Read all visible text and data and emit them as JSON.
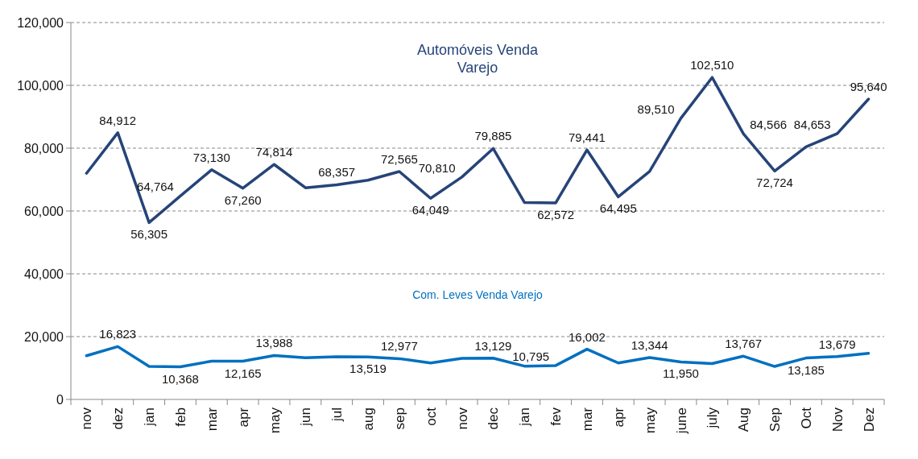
{
  "chart_data": {
    "type": "line",
    "categories": [
      "nov",
      "dez",
      "jan",
      "feb",
      "mar",
      "apr",
      "may",
      "jun",
      "jul",
      "aug",
      "sep",
      "oct",
      "nov",
      "dec",
      "jan",
      "fev",
      "mar",
      "apr",
      "may",
      "june",
      "july",
      "Aug",
      "Sep",
      "Oct",
      "Nov",
      "Dez"
    ],
    "series": [
      {
        "name": "Automóveis Venda Varejo",
        "color": "#264478",
        "values": [
          72000,
          84912,
          56305,
          64764,
          73130,
          67260,
          74814,
          67400,
          68357,
          69800,
          72565,
          64049,
          70810,
          79885,
          62700,
          62572,
          79441,
          64495,
          72600,
          89510,
          102510,
          84566,
          72724,
          80400,
          84653,
          95640
        ],
        "value_labels": [
          null,
          "84,912",
          "56,305",
          "64,764",
          "73,130",
          "67,260",
          "74,814",
          null,
          "68,357",
          null,
          "72,565",
          "64,049",
          "70,810",
          "79,885",
          null,
          "62,572",
          "79,441",
          "64,495",
          null,
          "89,510",
          "102,510",
          "84,566",
          "72,724",
          null,
          "84,653",
          "95,640"
        ]
      },
      {
        "name": "Com. Leves Venda Varejo",
        "color": "#0070c0",
        "values": [
          13900,
          16823,
          10500,
          10368,
          12200,
          12165,
          13988,
          13300,
          13600,
          13519,
          12977,
          11600,
          13100,
          13129,
          10600,
          10795,
          16002,
          11600,
          13344,
          11950,
          11400,
          13767,
          10500,
          13185,
          13679,
          14700
        ],
        "value_labels": [
          null,
          "16,823",
          null,
          "10,368",
          null,
          "12,165",
          "13,988",
          null,
          null,
          "13,519",
          "12,977",
          null,
          null,
          "13,129",
          null,
          "10,795",
          "16,002",
          null,
          "13,344",
          "11,950",
          null,
          "13,767",
          null,
          "13,185",
          "13,679",
          null
        ]
      }
    ],
    "ylim": [
      0,
      120000
    ],
    "yticks": [
      {
        "value": 0,
        "label": "0"
      },
      {
        "value": 20000,
        "label": "20,000"
      },
      {
        "value": 40000,
        "label": "40,000"
      },
      {
        "value": 60000,
        "label": "60,000"
      },
      {
        "value": 80000,
        "label": "80,000"
      },
      {
        "value": 100000,
        "label": "100,000"
      },
      {
        "value": 120000,
        "label": "120,000"
      }
    ],
    "grid": "y",
    "legend": false,
    "marker": "none",
    "line_style": "solid"
  }
}
